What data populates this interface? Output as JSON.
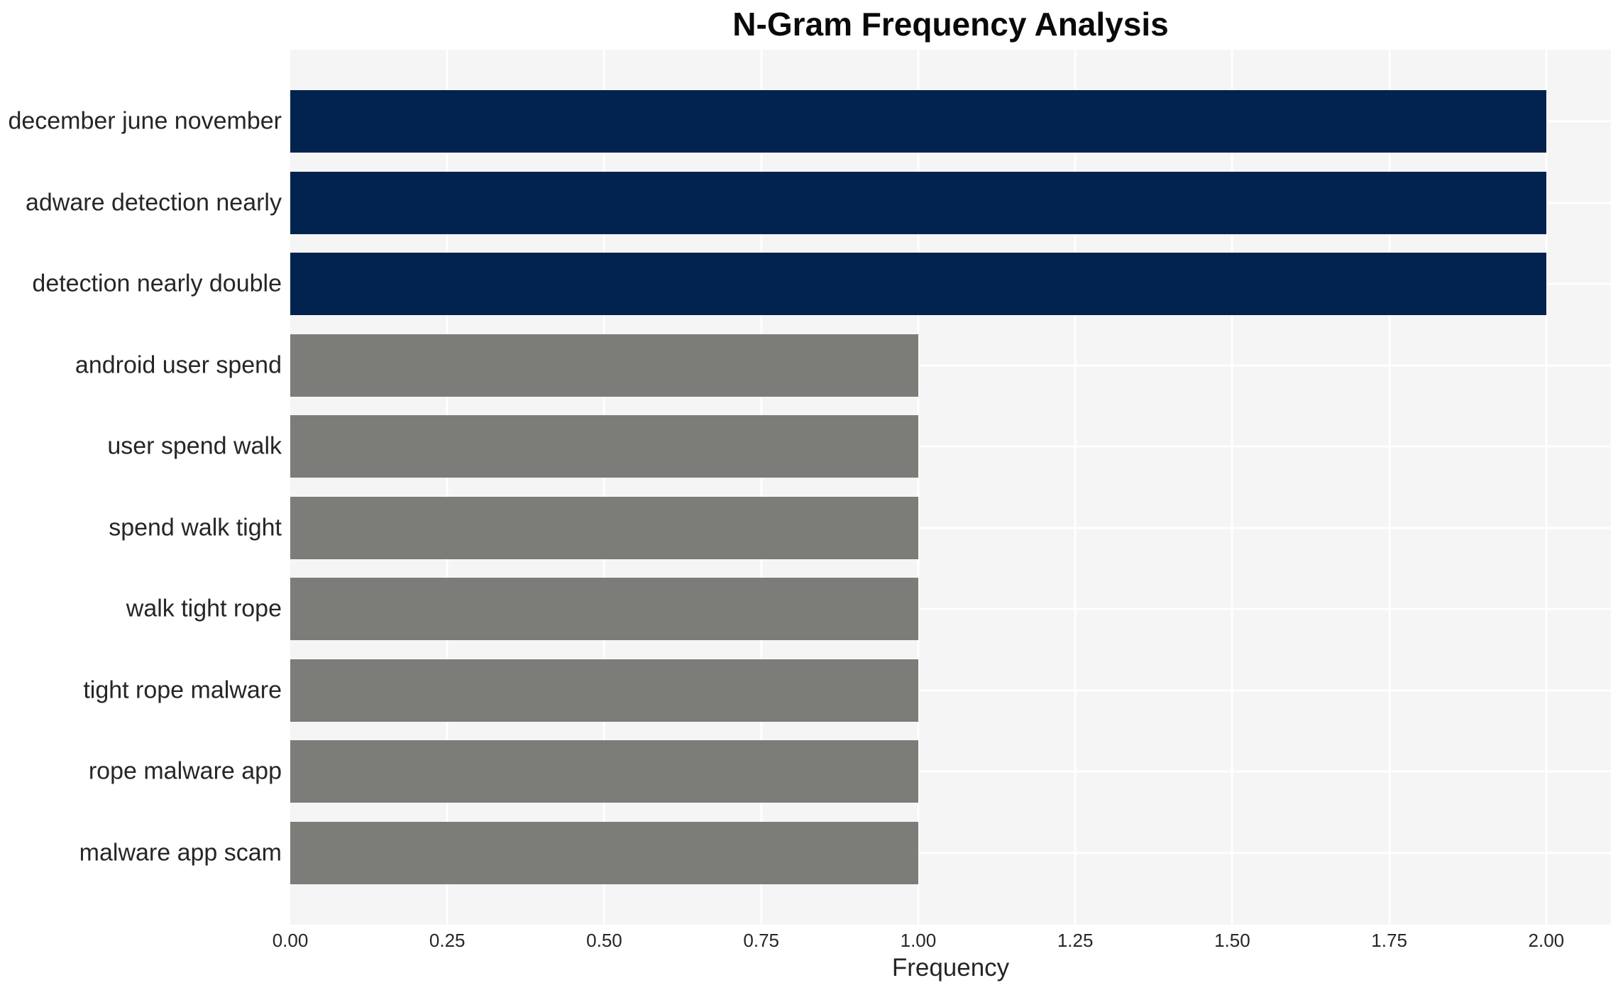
{
  "chart_data": {
    "type": "bar",
    "orientation": "horizontal",
    "title": "N-Gram Frequency Analysis",
    "xlabel": "Frequency",
    "ylabel": "",
    "categories": [
      "december june november",
      "adware detection nearly",
      "detection nearly double",
      "android user spend",
      "user spend walk",
      "spend walk tight",
      "walk tight rope",
      "tight rope malware",
      "rope malware app",
      "malware app scam"
    ],
    "values": [
      2,
      2,
      2,
      1,
      1,
      1,
      1,
      1,
      1,
      1
    ],
    "bar_colors": [
      "#02234d",
      "#02234d",
      "#02234d",
      "#7c7c79",
      "#7c7c79",
      "#7c7c79",
      "#7c7c79",
      "#7c7c79",
      "#7c7c79",
      "#7c7c79"
    ],
    "xlim": [
      0,
      2.103
    ],
    "xticks": [
      0.25,
      0.5,
      0.75,
      1.0,
      1.25,
      1.5,
      1.75,
      2.0
    ],
    "xtick_labels": [
      "0.00",
      "0.25",
      "0.50",
      "0.75",
      "1.00",
      "1.25",
      "1.50",
      "1.75",
      "2.00"
    ],
    "xtick_values": [
      0,
      0.25,
      0.5,
      0.75,
      1.0,
      1.25,
      1.5,
      1.75,
      2.0
    ],
    "grid": true,
    "legend": false,
    "colors": {
      "highlight": "#02234d",
      "default": "#7c7c79",
      "plot_background": "#f5f5f6",
      "gridline": "#ffffff",
      "text": "#262626"
    }
  }
}
